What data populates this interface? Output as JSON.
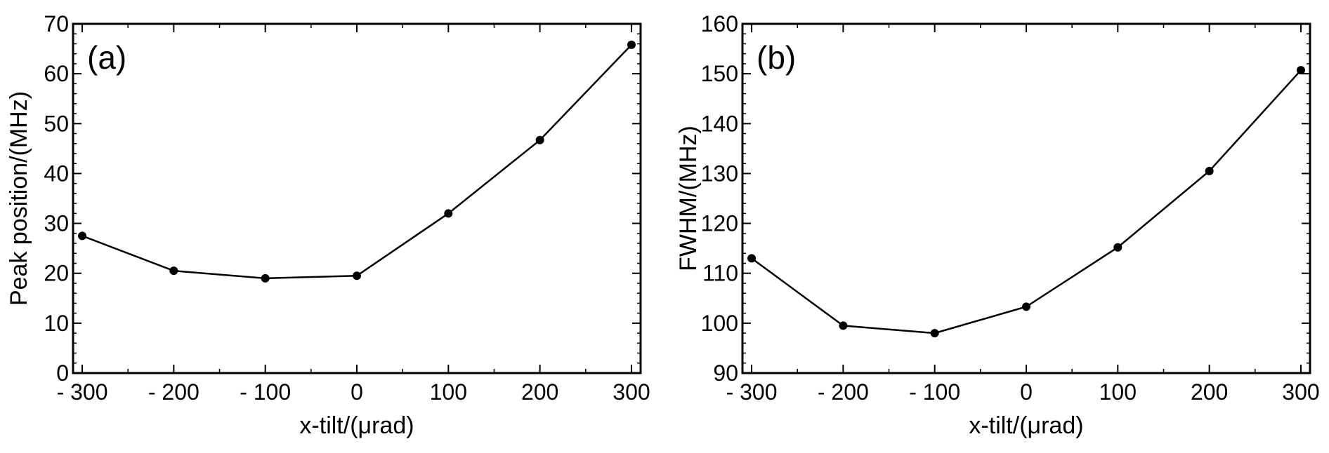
{
  "chart_data": [
    {
      "type": "line",
      "panel_label": "(a)",
      "title": "",
      "xlabel": "x-tilt/(μrad)",
      "ylabel": "Peak position/(MHz)",
      "xlim": [
        -310,
        310
      ],
      "ylim": [
        0,
        70
      ],
      "x": [
        -300,
        -200,
        -100,
        0,
        100,
        200,
        300
      ],
      "series": [
        {
          "values": [
            27.5,
            20.5,
            19.0,
            19.5,
            32.0,
            46.7,
            65.8
          ]
        }
      ],
      "x_ticks": [
        -300,
        -200,
        -100,
        0,
        100,
        200,
        300
      ],
      "x_tick_labels": [
        "- 300",
        "- 200",
        "- 100",
        "0",
        "100",
        "200",
        "300"
      ],
      "y_ticks": [
        0,
        10,
        20,
        30,
        40,
        50,
        60,
        70
      ],
      "y_tick_labels": [
        "0",
        "10",
        "20",
        "30",
        "40",
        "50",
        "60",
        "70"
      ],
      "grid": false
    },
    {
      "type": "line",
      "panel_label": "(b)",
      "title": "",
      "xlabel": "x-tilt/(μrad)",
      "ylabel": "FWHM/(MHz)",
      "xlim": [
        -310,
        310
      ],
      "ylim": [
        90,
        160
      ],
      "x": [
        -300,
        -200,
        -100,
        0,
        100,
        200,
        300
      ],
      "series": [
        {
          "values": [
            113.0,
            99.5,
            98.0,
            103.3,
            115.2,
            130.5,
            150.7
          ]
        }
      ],
      "x_ticks": [
        -300,
        -200,
        -100,
        0,
        100,
        200,
        300
      ],
      "x_tick_labels": [
        "- 300",
        "- 200",
        "- 100",
        "0",
        "100",
        "200",
        "300"
      ],
      "y_ticks": [
        90,
        100,
        110,
        120,
        130,
        140,
        150,
        160
      ],
      "y_tick_labels": [
        "90",
        "100",
        "110",
        "120",
        "130",
        "140",
        "150",
        "160"
      ],
      "grid": false
    }
  ]
}
